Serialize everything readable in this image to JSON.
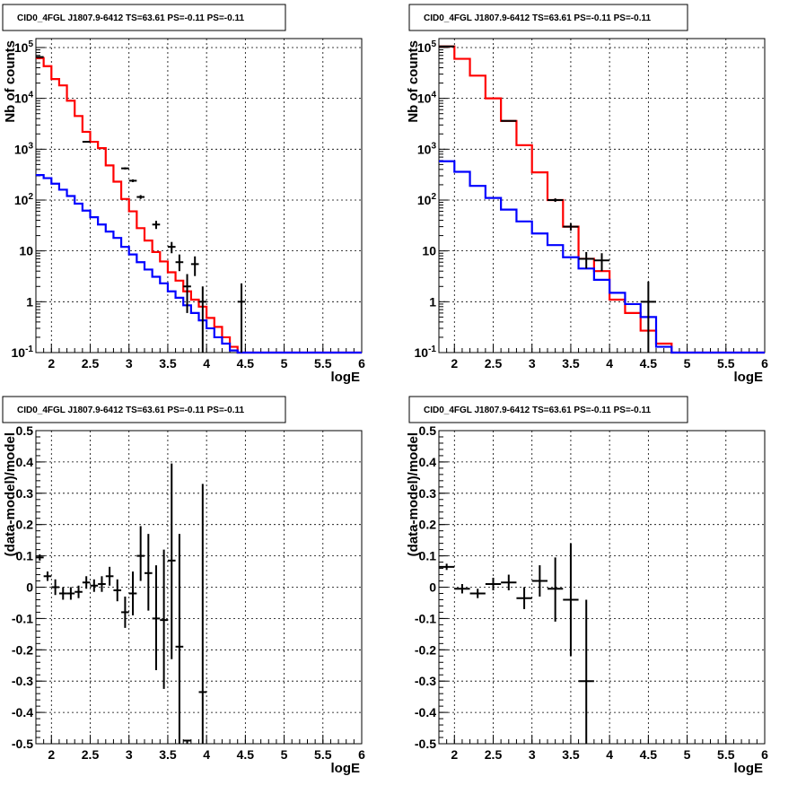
{
  "chart_data": [
    {
      "type": "line",
      "title": "CID0_4FGL J1807.9-6412 TS=63.61 PS=-0.11 PS=-0.11",
      "xlabel": "logE",
      "ylabel": "Nb of counts",
      "xlim": [
        1.8,
        6.0
      ],
      "ylim": [
        0.1,
        150000
      ],
      "yscale": "log",
      "grid": true,
      "xticks": [
        "2",
        "2.5",
        "3",
        "3.5",
        "4",
        "4.5",
        "5",
        "5.5",
        "6"
      ],
      "yticks": [
        "10^-1",
        "1",
        "10",
        "10^2",
        "10^3",
        "10^4",
        "10^5"
      ],
      "bin_edges": [
        1.8,
        1.9,
        2.0,
        2.1,
        2.2,
        2.3,
        2.4,
        2.5,
        2.6,
        2.7,
        2.8,
        2.9,
        3.0,
        3.1,
        3.2,
        3.3,
        3.4,
        3.5,
        3.6,
        3.7,
        3.8,
        3.9,
        4.0,
        4.1,
        4.2,
        4.3,
        4.4,
        4.5,
        4.6,
        4.7,
        4.8,
        4.9,
        5.0,
        5.1,
        5.2,
        5.3,
        5.4,
        5.5,
        5.6,
        5.7,
        5.8,
        5.9,
        6.0
      ],
      "series": [
        {
          "color": "#ff0000",
          "kind": "step",
          "values": [
            62000,
            43000,
            24000,
            18000,
            9000,
            4500,
            2200,
            1400,
            1050,
            480,
            230,
            105,
            60,
            28,
            16,
            9.5,
            6.2,
            3.8,
            2.6,
            1.6,
            1.1,
            0.8,
            0.48,
            0.32,
            0.2,
            0.13,
            0.1,
            0.1,
            0.1,
            0.1,
            0.1,
            0.1,
            0.1,
            0.1,
            0.1,
            0.1,
            0.1,
            0.1,
            0.1,
            0.1,
            0.1,
            0.1
          ]
        },
        {
          "color": "#0000ff",
          "kind": "step",
          "values": [
            310,
            270,
            210,
            160,
            120,
            85,
            62,
            46,
            33,
            24,
            18,
            12,
            8.5,
            6,
            4.3,
            3.1,
            2.3,
            1.6,
            1.2,
            0.85,
            0.6,
            0.43,
            0.3,
            0.2,
            0.15,
            0.11,
            0.1,
            0.1,
            0.1,
            0.1,
            0.1,
            0.1,
            0.1,
            0.1,
            0.1,
            0.1,
            0.1,
            0.1,
            0.1,
            0.1,
            0.1,
            0.1
          ]
        },
        {
          "color": "#000000",
          "kind": "points",
          "points": [
            {
              "x": 1.85,
              "y": 65000,
              "ylo": 64700,
              "yhi": 65300
            },
            {
              "x": 2.45,
              "y": 1400,
              "ylo": 1360,
              "yhi": 1440
            },
            {
              "x": 2.95,
              "y": 420,
              "ylo": 400,
              "yhi": 440
            },
            {
              "x": 3.05,
              "y": 240,
              "ylo": 225,
              "yhi": 255
            },
            {
              "x": 3.15,
              "y": 115,
              "ylo": 105,
              "yhi": 125
            },
            {
              "x": 3.35,
              "y": 33,
              "ylo": 27,
              "yhi": 39
            },
            {
              "x": 3.55,
              "y": 12,
              "ylo": 9,
              "yhi": 15
            },
            {
              "x": 3.65,
              "y": 6,
              "ylo": 4,
              "yhi": 8.5
            },
            {
              "x": 3.75,
              "y": 2,
              "ylo": 0.6,
              "yhi": 3.5
            },
            {
              "x": 3.85,
              "y": 5.5,
              "ylo": 3.2,
              "yhi": 7.8
            },
            {
              "x": 3.95,
              "y": 1,
              "ylo": 0.1,
              "yhi": 2.0
            },
            {
              "x": 4.45,
              "y": 1,
              "ylo": 0.1,
              "yhi": 2.3
            }
          ]
        }
      ]
    },
    {
      "type": "line",
      "title": "CID0_4FGL J1807.9-6412 TS=63.61 PS=-0.11 PS=-0.11",
      "xlabel": "logE",
      "ylabel": "Nb of counts",
      "xlim": [
        1.8,
        6.0
      ],
      "ylim": [
        0.1,
        150000
      ],
      "yscale": "log",
      "grid": true,
      "xticks": [
        "2",
        "2.5",
        "3",
        "3.5",
        "4",
        "4.5",
        "5",
        "5.5",
        "6"
      ],
      "yticks": [
        "10^-1",
        "1",
        "10",
        "10^2",
        "10^3",
        "10^4",
        "10^5"
      ],
      "bin_edges": [
        1.8,
        2.0,
        2.2,
        2.4,
        2.6,
        2.8,
        3.0,
        3.2,
        3.4,
        3.6,
        3.8,
        4.0,
        4.2,
        4.4,
        4.6,
        4.8,
        5.0,
        5.2,
        5.4,
        5.6,
        5.8,
        6.0
      ],
      "series": [
        {
          "color": "#ff0000",
          "kind": "step",
          "values": [
            105000,
            60000,
            28000,
            10000,
            3600,
            1200,
            350,
            100,
            30,
            7,
            4,
            1.1,
            0.6,
            0.27,
            0.15,
            0.1,
            0.1,
            0.1,
            0.1,
            0.1,
            0.1
          ]
        },
        {
          "color": "#0000ff",
          "kind": "step",
          "values": [
            580,
            360,
            190,
            110,
            65,
            38,
            22,
            13,
            7.5,
            4.5,
            2.7,
            1.5,
            0.9,
            0.5,
            0.13,
            0.1,
            0.1,
            0.1,
            0.1,
            0.1,
            0.1
          ]
        },
        {
          "color": "#000000",
          "kind": "points",
          "points": [
            {
              "x": 1.9,
              "y": 105000,
              "ylo": 104600,
              "yhi": 105400
            },
            {
              "x": 2.7,
              "y": 3600,
              "ylo": 3520,
              "yhi": 3680
            },
            {
              "x": 3.3,
              "y": 100,
              "ylo": 92,
              "yhi": 108
            },
            {
              "x": 3.5,
              "y": 30,
              "ylo": 25,
              "yhi": 35
            },
            {
              "x": 3.7,
              "y": 7,
              "ylo": 4.5,
              "yhi": 9.5
            },
            {
              "x": 3.9,
              "y": 6.5,
              "ylo": 4.0,
              "yhi": 9.0
            },
            {
              "x": 4.5,
              "y": 1,
              "ylo": 0.1,
              "yhi": 2.5
            }
          ]
        }
      ]
    },
    {
      "type": "scatter",
      "title": "CID0_4FGL J1807.9-6412 TS=63.61 PS=-0.11 PS=-0.11",
      "xlabel": "logE",
      "ylabel": "(data-model)/model",
      "xlim": [
        1.8,
        6.0
      ],
      "ylim": [
        -0.5,
        0.5
      ],
      "grid": true,
      "xticks": [
        "2",
        "2.5",
        "3",
        "3.5",
        "4",
        "4.5",
        "5",
        "5.5",
        "6"
      ],
      "yticks": [
        "-0.5",
        "-0.4",
        "-0.3",
        "-0.2",
        "-0.1",
        "0",
        "0.1",
        "0.2",
        "0.3",
        "0.4",
        "0.5"
      ],
      "xhalfwidth": 0.05,
      "series": [
        {
          "color": "#000000",
          "kind": "points",
          "points": [
            {
              "x": 1.85,
              "y": 0.095,
              "ylo": 0.085,
              "yhi": 0.105
            },
            {
              "x": 1.95,
              "y": 0.035,
              "ylo": 0.02,
              "yhi": 0.05
            },
            {
              "x": 2.05,
              "y": 0.0,
              "ylo": -0.025,
              "yhi": 0.025
            },
            {
              "x": 2.15,
              "y": -0.02,
              "ylo": -0.04,
              "yhi": 0.0
            },
            {
              "x": 2.25,
              "y": -0.02,
              "ylo": -0.04,
              "yhi": 0.0
            },
            {
              "x": 2.35,
              "y": -0.015,
              "ylo": -0.035,
              "yhi": 0.005
            },
            {
              "x": 2.45,
              "y": 0.015,
              "ylo": -0.005,
              "yhi": 0.035
            },
            {
              "x": 2.55,
              "y": 0.005,
              "ylo": -0.015,
              "yhi": 0.025
            },
            {
              "x": 2.65,
              "y": 0.01,
              "ylo": -0.015,
              "yhi": 0.035
            },
            {
              "x": 2.75,
              "y": 0.035,
              "ylo": 0.005,
              "yhi": 0.065
            },
            {
              "x": 2.85,
              "y": -0.01,
              "ylo": -0.045,
              "yhi": 0.025
            },
            {
              "x": 2.95,
              "y": -0.08,
              "ylo": -0.13,
              "yhi": -0.03
            },
            {
              "x": 3.05,
              "y": -0.02,
              "ylo": -0.09,
              "yhi": 0.05
            },
            {
              "x": 3.15,
              "y": 0.1,
              "ylo": 0.02,
              "yhi": 0.195
            },
            {
              "x": 3.25,
              "y": 0.045,
              "ylo": -0.075,
              "yhi": 0.17
            },
            {
              "x": 3.35,
              "y": -0.1,
              "ylo": -0.265,
              "yhi": 0.07
            },
            {
              "x": 3.45,
              "y": -0.105,
              "ylo": -0.325,
              "yhi": 0.12
            },
            {
              "x": 3.55,
              "y": 0.085,
              "ylo": -0.23,
              "yhi": 0.395
            },
            {
              "x": 3.65,
              "y": -0.19,
              "ylo": -0.5,
              "yhi": 0.17
            },
            {
              "x": 3.75,
              "y": -0.49,
              "ylo": -0.5,
              "yhi": -0.49
            },
            {
              "x": 3.95,
              "y": -0.335,
              "ylo": -0.5,
              "yhi": 0.33
            }
          ]
        }
      ]
    },
    {
      "type": "scatter",
      "title": "CID0_4FGL J1807.9-6412 TS=63.61 PS=-0.11 PS=-0.11",
      "xlabel": "logE",
      "ylabel": "(data-model)/model",
      "xlim": [
        1.8,
        6.0
      ],
      "ylim": [
        -0.5,
        0.5
      ],
      "grid": true,
      "xticks": [
        "2",
        "2.5",
        "3",
        "3.5",
        "4",
        "4.5",
        "5",
        "5.5",
        "6"
      ],
      "yticks": [
        "-0.5",
        "-0.4",
        "-0.3",
        "-0.2",
        "-0.1",
        "0",
        "0.1",
        "0.2",
        "0.3",
        "0.4",
        "0.5"
      ],
      "xhalfwidth": 0.1,
      "series": [
        {
          "color": "#000000",
          "kind": "points",
          "points": [
            {
              "x": 1.9,
              "y": 0.065,
              "ylo": 0.055,
              "yhi": 0.075
            },
            {
              "x": 2.1,
              "y": -0.005,
              "ylo": -0.02,
              "yhi": 0.01
            },
            {
              "x": 2.3,
              "y": -0.02,
              "ylo": -0.035,
              "yhi": -0.005
            },
            {
              "x": 2.5,
              "y": 0.01,
              "ylo": -0.01,
              "yhi": 0.03
            },
            {
              "x": 2.7,
              "y": 0.015,
              "ylo": -0.01,
              "yhi": 0.04
            },
            {
              "x": 2.9,
              "y": -0.035,
              "ylo": -0.07,
              "yhi": 0.0
            },
            {
              "x": 3.1,
              "y": 0.02,
              "ylo": -0.03,
              "yhi": 0.07
            },
            {
              "x": 3.3,
              "y": -0.005,
              "ylo": -0.11,
              "yhi": 0.095
            },
            {
              "x": 3.5,
              "y": -0.04,
              "ylo": -0.22,
              "yhi": 0.14
            },
            {
              "x": 3.7,
              "y": -0.3,
              "ylo": -0.5,
              "yhi": -0.04
            }
          ]
        }
      ]
    }
  ]
}
